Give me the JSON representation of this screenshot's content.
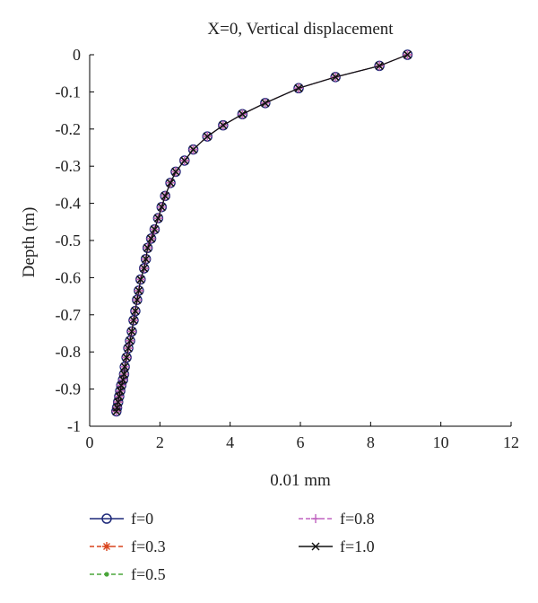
{
  "chart_data": {
    "type": "line",
    "title": "X=0, Vertical displacement",
    "xlabel": "0.01 mm",
    "ylabel": "Depth (m)",
    "xlim": [
      0,
      12
    ],
    "ylim": [
      -1,
      0
    ],
    "xticks": [
      "0",
      "2",
      "4",
      "6",
      "8",
      "10",
      "12"
    ],
    "yticks": [
      "0",
      "-0.1",
      "-0.2",
      "-0.3",
      "-0.4",
      "-0.5",
      "-0.6",
      "-0.7",
      "-0.8",
      "-0.9",
      "-1"
    ],
    "grid": false,
    "legend_position": "bottom",
    "x": [
      9.05,
      8.25,
      7.0,
      5.95,
      5.0,
      4.35,
      3.8,
      3.35,
      2.95,
      2.7,
      2.45,
      2.3,
      2.15,
      2.05,
      1.95,
      1.85,
      1.75,
      1.65,
      1.6,
      1.55,
      1.45,
      1.4,
      1.35,
      1.3,
      1.25,
      1.2,
      1.15,
      1.1,
      1.05,
      1.0,
      0.98,
      0.95,
      0.9,
      0.87,
      0.84,
      0.81,
      0.78,
      0.76
    ],
    "y": [
      0.0,
      -0.03,
      -0.06,
      -0.09,
      -0.13,
      -0.16,
      -0.19,
      -0.22,
      -0.255,
      -0.285,
      -0.315,
      -0.345,
      -0.38,
      -0.41,
      -0.44,
      -0.47,
      -0.495,
      -0.52,
      -0.55,
      -0.575,
      -0.605,
      -0.635,
      -0.66,
      -0.69,
      -0.715,
      -0.745,
      -0.77,
      -0.79,
      -0.815,
      -0.84,
      -0.86,
      -0.875,
      -0.89,
      -0.905,
      -0.92,
      -0.935,
      -0.95,
      -0.96
    ],
    "series": [
      {
        "name": "f=0",
        "color": "#1f2a7a",
        "marker": "circle",
        "dash": "solid"
      },
      {
        "name": "f=0.3",
        "color": "#d9441c",
        "marker": "asterisk",
        "dash": "dashed"
      },
      {
        "name": "f=0.5",
        "color": "#4aa53a",
        "marker": "dot",
        "dash": "dashed"
      },
      {
        "name": "f=0.8",
        "color": "#c064c0",
        "marker": "plus",
        "dash": "dashed"
      },
      {
        "name": "f=1.0",
        "color": "#111111",
        "marker": "x",
        "dash": "solid"
      }
    ]
  }
}
